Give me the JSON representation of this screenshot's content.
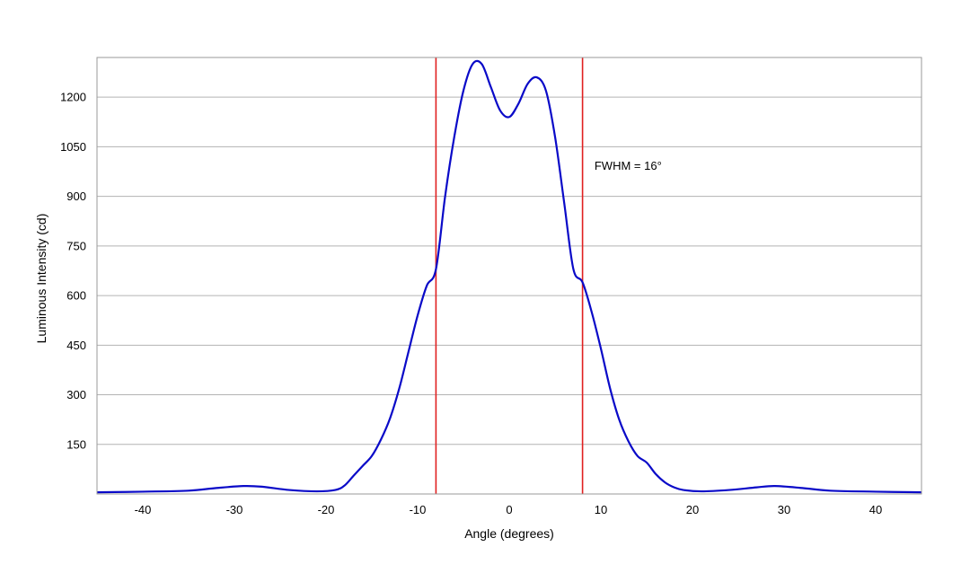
{
  "chart_data": {
    "type": "line",
    "title": "",
    "xlabel": "Angle (degrees)",
    "ylabel": "Luminous Intensity (cd)",
    "xlim": [
      -45,
      45
    ],
    "ylim": [
      0,
      1320
    ],
    "grid": "horizontal",
    "x_ticks": [
      -40,
      -30,
      -20,
      -10,
      0,
      10,
      20,
      30,
      40
    ],
    "x_tick_labels": [
      "-40",
      "-30",
      "-20",
      "-10",
      "0",
      "10",
      "20",
      "30",
      "40"
    ],
    "y_ticks": [
      150,
      300,
      450,
      600,
      750,
      900,
      1050,
      1200
    ],
    "y_tick_labels": [
      "150",
      "300",
      "450",
      "600",
      "750",
      "900",
      "1050",
      "1200"
    ],
    "series": [
      {
        "color": "#0a0ac8",
        "x": [
          -45,
          -40,
          -35,
          -32,
          -29,
          -27,
          -24,
          -21,
          -19,
          -18,
          -17,
          -16,
          -15,
          -14,
          -13,
          -12,
          -11,
          -10,
          -9,
          -8,
          -7,
          -6,
          -5,
          -4,
          -3,
          -2,
          -1,
          0,
          1,
          2,
          3,
          4,
          5,
          6,
          7,
          8,
          9,
          10,
          11,
          12,
          13,
          14,
          15,
          16,
          17,
          18,
          19,
          21,
          24,
          27,
          29,
          32,
          35,
          40,
          45
        ],
        "y": [
          5,
          7,
          10,
          18,
          24,
          22,
          12,
          8,
          12,
          25,
          55,
          85,
          115,
          165,
          230,
          320,
          430,
          540,
          630,
          680,
          900,
          1080,
          1220,
          1300,
          1300,
          1230,
          1160,
          1140,
          1180,
          1240,
          1260,
          1220,
          1080,
          880,
          680,
          640,
          550,
          440,
          320,
          225,
          160,
          115,
          95,
          60,
          35,
          20,
          12,
          8,
          12,
          20,
          24,
          18,
          10,
          7,
          5
        ]
      }
    ],
    "vlines": [
      {
        "x": -8,
        "color": "#e02020"
      },
      {
        "x": 8,
        "color": "#e02020"
      }
    ],
    "annotations": [
      {
        "text": "FWHM = 16°",
        "x": 9.3,
        "y": 980
      }
    ]
  }
}
